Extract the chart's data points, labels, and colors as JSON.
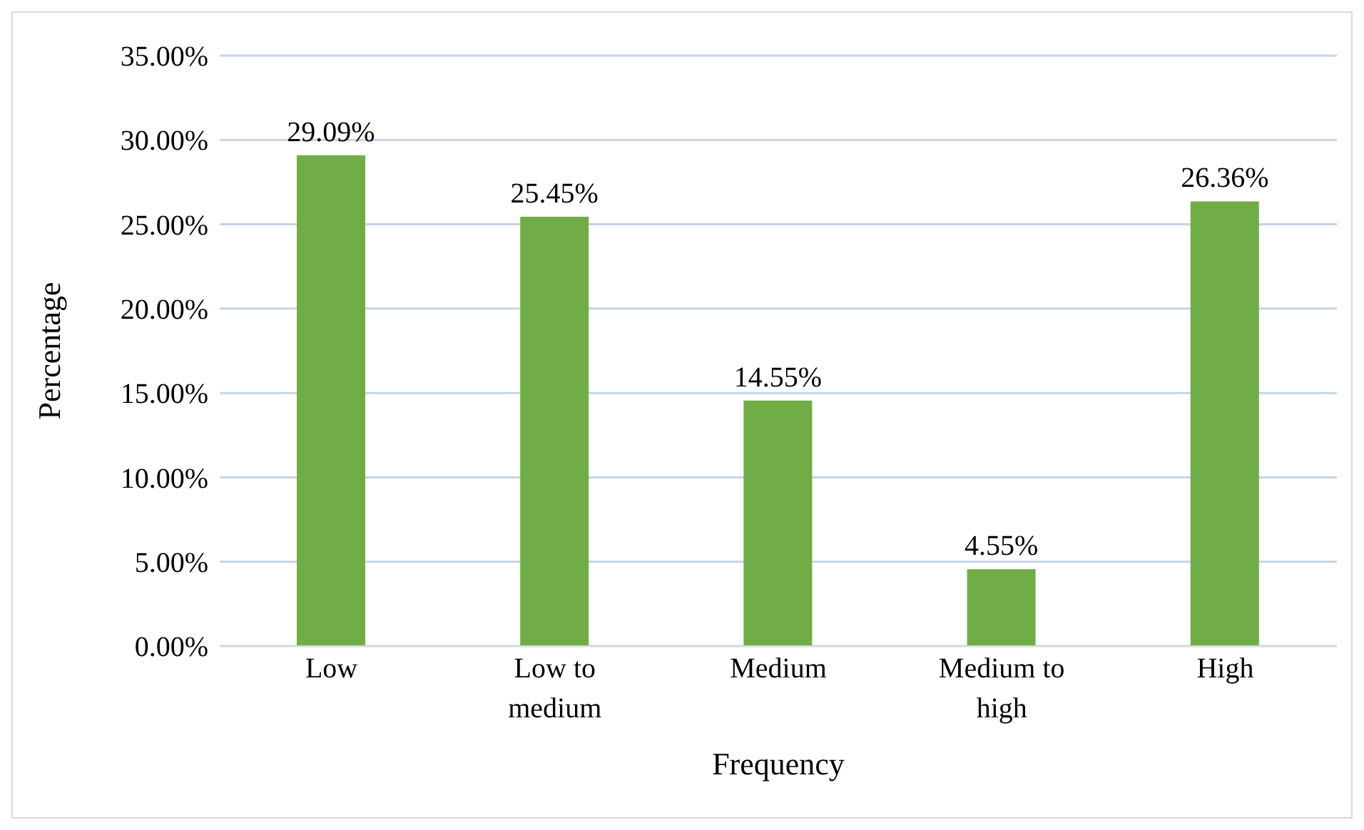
{
  "chart_data": {
    "type": "bar",
    "xlabel": "Frequency",
    "ylabel": "Percentage",
    "categories": [
      "Low",
      "Low to medium",
      "Medium",
      "Medium to high",
      "High"
    ],
    "values": [
      29.09,
      25.45,
      14.55,
      4.55,
      26.36
    ],
    "value_labels": [
      "29.09%",
      "25.45%",
      "14.55%",
      "4.55%",
      "26.36%"
    ],
    "color": "#70ad47",
    "ylim": [
      0,
      35
    ],
    "yticks": [
      {
        "value": 0,
        "label": "0.00%"
      },
      {
        "value": 5,
        "label": "5.00%"
      },
      {
        "value": 10,
        "label": "10.00%"
      },
      {
        "value": 15,
        "label": "15.00%"
      },
      {
        "value": 20,
        "label": "20.00%"
      },
      {
        "value": 25,
        "label": "25.00%"
      },
      {
        "value": 30,
        "label": "30.00%"
      },
      {
        "value": 35,
        "label": "35.00%"
      }
    ],
    "grid": "y",
    "legend": false
  }
}
